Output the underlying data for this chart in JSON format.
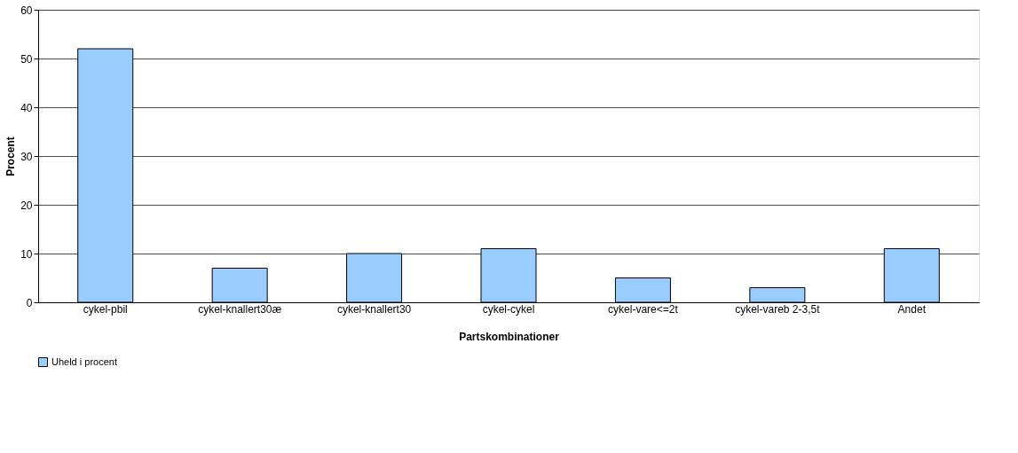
{
  "chart_data": {
    "type": "bar",
    "xlabel": "Partskombinationer",
    "ylabel": "Procent",
    "categories": [
      "cykel-pbil",
      "cykel-knallert30æ",
      "cykel-knallert30",
      "cykel-cykel",
      "cykel-vare<=2t",
      "cykel-vareb 2-3,5t",
      "Andet"
    ],
    "series": [
      {
        "name": "Uheld i procent",
        "color": "#99ccff",
        "values": [
          52,
          7,
          10,
          11,
          5,
          3,
          11
        ]
      }
    ],
    "ylim": [
      0,
      60
    ],
    "yticks": [
      0,
      10,
      20,
      30,
      40,
      50,
      60
    ],
    "grid": "y",
    "legend": "bottom"
  }
}
